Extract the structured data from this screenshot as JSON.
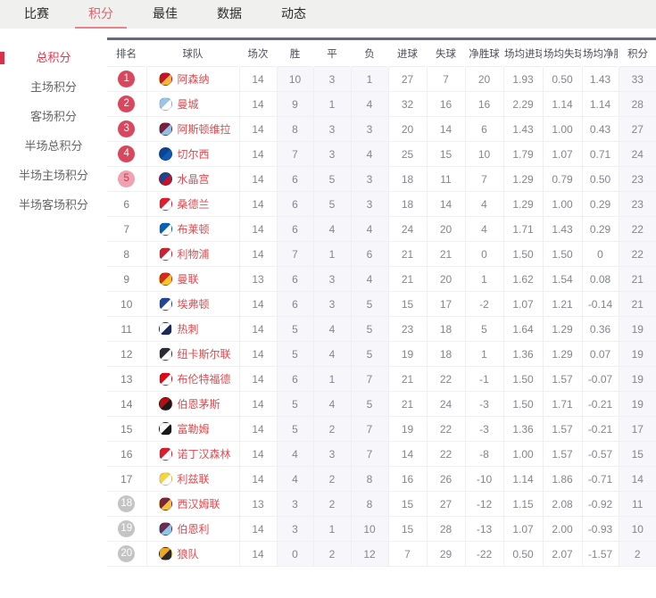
{
  "nav": {
    "tabs": [
      {
        "label": "比赛",
        "active": false
      },
      {
        "label": "积分",
        "active": true
      },
      {
        "label": "最佳",
        "active": false
      },
      {
        "label": "数据",
        "active": false
      },
      {
        "label": "动态",
        "active": false
      }
    ]
  },
  "sidebar": {
    "items": [
      {
        "label": "总积分",
        "active": true
      },
      {
        "label": "主场积分",
        "active": false
      },
      {
        "label": "客场积分",
        "active": false
      },
      {
        "label": "半场总积分",
        "active": false
      },
      {
        "label": "半场主场积分",
        "active": false
      },
      {
        "label": "半场客场积分",
        "active": false
      }
    ]
  },
  "colors": {
    "accent_red": "#dd6470",
    "sidebar_active_red": "#e0394d",
    "badge_red": "#d8475d",
    "badge_pink": "#efa2af",
    "badge_gray": "#c4c4c4",
    "team_name_red": "#e3494e",
    "header_top_border": "#67697a",
    "column_tint": "#f7f7fb",
    "nav_background": "#f0f0ee"
  },
  "table": {
    "columns": [
      "排名",
      "球队",
      "场次",
      "胜",
      "平",
      "负",
      "进球",
      "失球",
      "净胜球",
      "场均进球",
      "场均失球",
      "场均净胜",
      "积分"
    ],
    "column_keys": [
      "rank",
      "team",
      "played",
      "wins",
      "draws",
      "losses",
      "goals_for",
      "goals_against",
      "goal_diff",
      "avg_goals_for",
      "avg_goals_against",
      "avg_goal_diff",
      "points"
    ],
    "tinted_stat_indexes": [
      1,
      2,
      3,
      10
    ],
    "rows": [
      {
        "rank": 1,
        "badge": "red",
        "team": "阿森纳",
        "logo": [
          "#c8102e",
          "#f3b53e"
        ],
        "stats": [
          14,
          10,
          3,
          1,
          27,
          7,
          20,
          "1.93",
          "0.50",
          "1.43",
          33
        ]
      },
      {
        "rank": 2,
        "badge": "red",
        "team": "曼城",
        "logo": [
          "#99c5e7",
          "#ffffff"
        ],
        "stats": [
          14,
          9,
          1,
          4,
          32,
          16,
          16,
          "2.29",
          "1.14",
          "1.14",
          28
        ]
      },
      {
        "rank": 3,
        "badge": "red",
        "team": "阿斯顿维拉",
        "logo": [
          "#7a1e3c",
          "#93bee5"
        ],
        "stats": [
          14,
          8,
          3,
          3,
          20,
          14,
          6,
          "1.43",
          "1.00",
          "0.43",
          27
        ]
      },
      {
        "rank": 4,
        "badge": "red",
        "team": "切尔西",
        "logo": [
          "#0a4595",
          "#1159b5"
        ],
        "stats": [
          14,
          7,
          3,
          4,
          25,
          15,
          10,
          "1.79",
          "1.07",
          "0.71",
          24
        ]
      },
      {
        "rank": 5,
        "badge": "pink",
        "team": "水晶宫",
        "logo": [
          "#1b458f",
          "#c4122e"
        ],
        "stats": [
          14,
          6,
          5,
          3,
          18,
          11,
          7,
          "1.29",
          "0.79",
          "0.50",
          23
        ]
      },
      {
        "rank": 6,
        "badge": "none",
        "team": "桑德兰",
        "logo": [
          "#e41b2d",
          "#ffffff"
        ],
        "stats": [
          14,
          6,
          5,
          3,
          18,
          14,
          4,
          "1.29",
          "1.00",
          "0.29",
          23
        ]
      },
      {
        "rank": 7,
        "badge": "none",
        "team": "布莱顿",
        "logo": [
          "#0062b8",
          "#ffffff"
        ],
        "stats": [
          14,
          6,
          4,
          4,
          24,
          20,
          4,
          "1.71",
          "1.43",
          "0.29",
          22
        ]
      },
      {
        "rank": 8,
        "badge": "none",
        "team": "利物浦",
        "logo": [
          "#d01f31",
          "#ffffff"
        ],
        "stats": [
          14,
          7,
          1,
          6,
          21,
          21,
          0,
          "1.50",
          "1.50",
          "0",
          22
        ]
      },
      {
        "rank": 9,
        "badge": "none",
        "team": "曼联",
        "logo": [
          "#d6281c",
          "#f6c52e"
        ],
        "stats": [
          13,
          6,
          3,
          4,
          21,
          20,
          1,
          "1.62",
          "1.54",
          "0.08",
          21
        ]
      },
      {
        "rank": 10,
        "badge": "none",
        "team": "埃弗顿",
        "logo": [
          "#22459c",
          "#ffffff"
        ],
        "stats": [
          14,
          6,
          3,
          5,
          15,
          17,
          -2,
          "1.07",
          "1.21",
          "-0.14",
          21
        ]
      },
      {
        "rank": 11,
        "badge": "none",
        "team": "热刺",
        "logo": [
          "#ffffff",
          "#1b2a5a"
        ],
        "stats": [
          14,
          5,
          4,
          5,
          23,
          18,
          5,
          "1.64",
          "1.29",
          "0.36",
          19
        ]
      },
      {
        "rank": 12,
        "badge": "none",
        "team": "纽卡斯尔联",
        "logo": [
          "#2b2b33",
          "#ffffff"
        ],
        "stats": [
          14,
          5,
          4,
          5,
          19,
          18,
          1,
          "1.36",
          "1.29",
          "0.07",
          19
        ]
      },
      {
        "rank": 13,
        "badge": "none",
        "team": "布伦特福德",
        "logo": [
          "#e30613",
          "#ffffff"
        ],
        "stats": [
          14,
          6,
          1,
          7,
          21,
          22,
          -1,
          "1.50",
          "1.57",
          "-0.07",
          19
        ]
      },
      {
        "rank": 14,
        "badge": "none",
        "team": "伯恩茅斯",
        "logo": [
          "#b50e12",
          "#1a1a1a"
        ],
        "stats": [
          14,
          5,
          4,
          5,
          21,
          24,
          -3,
          "1.50",
          "1.71",
          "-0.21",
          19
        ]
      },
      {
        "rank": 15,
        "badge": "none",
        "team": "富勒姆",
        "logo": [
          "#ffffff",
          "#1a1a1a"
        ],
        "stats": [
          14,
          5,
          2,
          7,
          19,
          22,
          -3,
          "1.36",
          "1.57",
          "-0.21",
          17
        ]
      },
      {
        "rank": 16,
        "badge": "none",
        "team": "诺丁汉森林",
        "logo": [
          "#e01a2b",
          "#ffffff"
        ],
        "stats": [
          14,
          4,
          3,
          7,
          14,
          22,
          -8,
          "1.00",
          "1.57",
          "-0.57",
          15
        ]
      },
      {
        "rank": 17,
        "badge": "none",
        "team": "利兹联",
        "logo": [
          "#f5d43c",
          "#ffffff"
        ],
        "stats": [
          14,
          4,
          2,
          8,
          16,
          26,
          -10,
          "1.14",
          "1.86",
          "-0.71",
          14
        ]
      },
      {
        "rank": 18,
        "badge": "gray",
        "team": "西汉姆联",
        "logo": [
          "#7a2638",
          "#f3c143"
        ],
        "stats": [
          13,
          3,
          2,
          8,
          15,
          27,
          -12,
          "1.15",
          "2.08",
          "-0.92",
          11
        ]
      },
      {
        "rank": 19,
        "badge": "gray",
        "team": "伯恩利",
        "logo": [
          "#6e2a50",
          "#8ec6e8"
        ],
        "stats": [
          14,
          3,
          1,
          10,
          15,
          28,
          -13,
          "1.07",
          "2.00",
          "-0.93",
          10
        ]
      },
      {
        "rank": 20,
        "badge": "gray",
        "team": "狼队",
        "logo": [
          "#f0a81d",
          "#2b2b2b"
        ],
        "stats": [
          14,
          0,
          2,
          12,
          7,
          29,
          -22,
          "0.50",
          "2.07",
          "-1.57",
          2
        ]
      }
    ]
  }
}
